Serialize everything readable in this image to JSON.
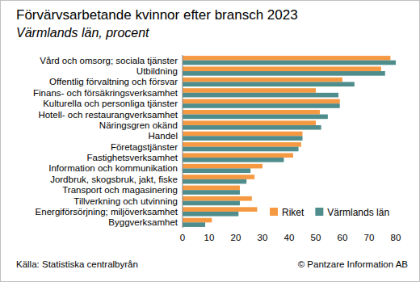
{
  "chart_data": {
    "type": "bar",
    "orientation": "horizontal",
    "title": "Förvärvsarbetande kvinnor efter bransch 2023",
    "subtitle": "Värmlands län, procent",
    "categories": [
      "Vård och omsorg; sociala tjänster",
      "Utbildning",
      "Offentlig förvaltning och försvar",
      "Finans- och försäkringsverksamhet",
      "Kulturella och personliga tjänster",
      "Hotell- och restaurangverksamhet",
      "Näringsgren okänd",
      "Handel",
      "Företagstjänster",
      "Fastighetsverksamhet",
      "Information och kommunikation",
      "Jordbruk, skogsbruk, jakt, fiske",
      "Transport och magasinering",
      "Tillverkning och utvinning",
      "Energiförsörjning; miljöverksamhet",
      "Byggverksamhet"
    ],
    "series": [
      {
        "name": "Riket",
        "color": "#f59a42",
        "values": [
          78,
          74.5,
          60,
          50,
          59,
          51.5,
          50,
          45,
          44.5,
          41.5,
          30,
          27,
          21.5,
          26,
          28,
          11
        ]
      },
      {
        "name": "Värmlands län",
        "color": "#4f8c8c",
        "values": [
          80,
          76,
          64.5,
          58.5,
          59,
          54.5,
          52,
          45,
          43.5,
          38,
          25.5,
          24,
          21.5,
          21.5,
          21,
          8.5
        ]
      }
    ],
    "xlim": [
      0,
      80
    ],
    "xticks": [
      0,
      10,
      20,
      30,
      40,
      50,
      60,
      70,
      80
    ],
    "grid": false,
    "legend": "lower right",
    "source": "Källa: Statistiska centralbyrån",
    "copyright": "© Pantzare Information AB"
  }
}
